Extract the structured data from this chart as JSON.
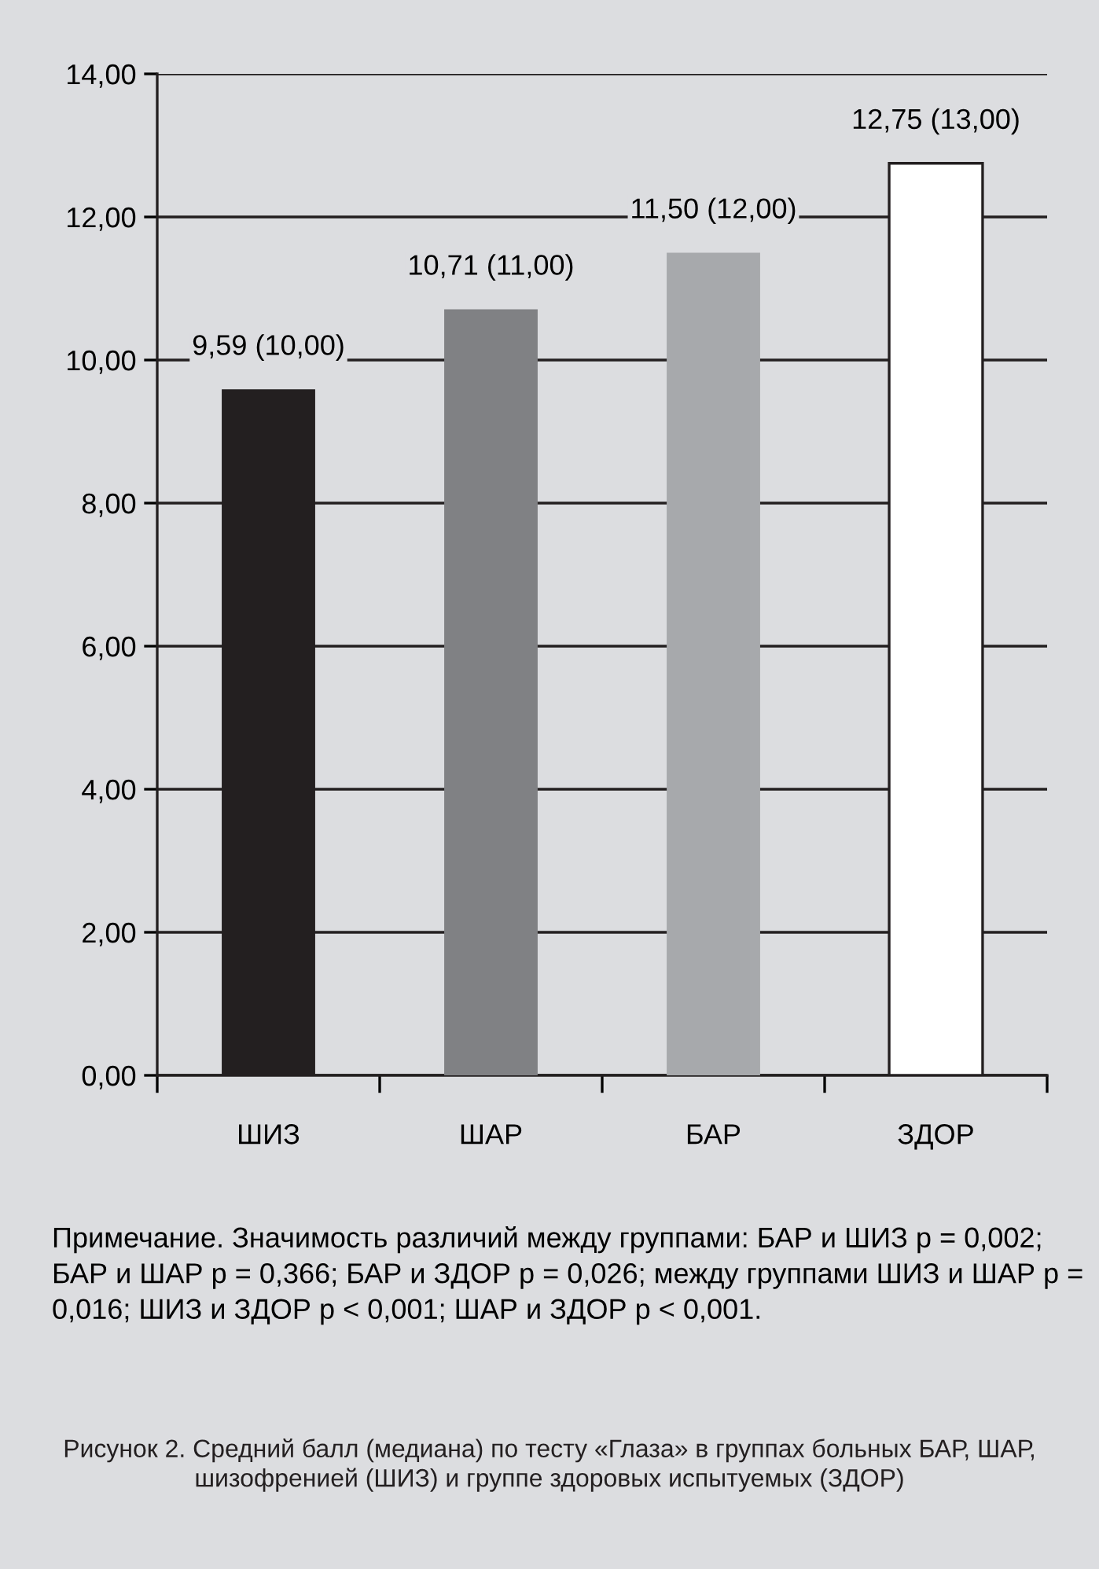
{
  "chart_data": {
    "type": "bar",
    "categories": [
      "ШИЗ",
      "ШАР",
      "БАР",
      "ЗДОР"
    ],
    "values": [
      9.59,
      10.71,
      11.5,
      12.75
    ],
    "colors": [
      "#231f20",
      "#808184",
      "#a7a9ac",
      "#ffffff"
    ],
    "value_labels": [
      "9,59 (10,00)",
      "10,71 (11,00)",
      "11,50 (12,00)",
      "12,75 (13,00)"
    ],
    "ylim": [
      0,
      14
    ],
    "yticks": [
      {
        "value": 0,
        "label": "0,00"
      },
      {
        "value": 2,
        "label": "2,00"
      },
      {
        "value": 4,
        "label": "4,00"
      },
      {
        "value": 6,
        "label": "6,00"
      },
      {
        "value": 8,
        "label": "8,00"
      },
      {
        "value": 10,
        "label": "10,00"
      },
      {
        "value": 12,
        "label": "12,00"
      },
      {
        "value": 14,
        "label": "14,00"
      }
    ],
    "grid": "y",
    "annotations": [
      "Примечание. Значимость различий между группами: БАР и ШИЗ p = 0,002; БАР и ШАР p = 0,366; БАР и ЗДОР p = 0,026; между группами ШИЗ и ШАР p = 0,016; ШИЗ и ЗДОР p < 0,001; ШАР и ЗДОР p < 0,001.",
      "Рисунок 2. Средний балл (медиана) по тесту «Глаза» в группах больных БАР, ШАР, шизофренией (ШИЗ) и группе здоровых испытуемых (ЗДОР)"
    ]
  }
}
